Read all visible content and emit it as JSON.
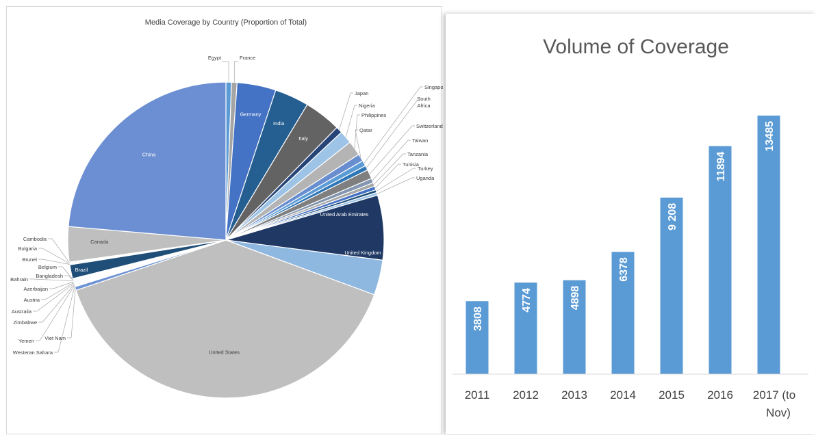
{
  "chart_data": [
    {
      "type": "pie",
      "title": "Media Coverage by Country (Proportion of Total)",
      "slices": [
        {
          "label": "Egypt",
          "value": 0.6,
          "color": "#5b9bd5"
        },
        {
          "label": "France",
          "value": 0.6,
          "color": "#a5a5a5"
        },
        {
          "label": "Germany",
          "value": 4.2,
          "color": "#4472c4"
        },
        {
          "label": "India",
          "value": 3.7,
          "color": "#255e91"
        },
        {
          "label": "Italy",
          "value": 4.0,
          "color": "#636363"
        },
        {
          "label": "Japan",
          "value": 0.7,
          "color": "#264478"
        },
        {
          "label": "Nigeria",
          "value": 1.4,
          "color": "#9dc3e6"
        },
        {
          "label": "Philippines",
          "value": 1.6,
          "color": "#b4b4b4"
        },
        {
          "label": "Qatar",
          "value": 0.8,
          "color": "#698ed0"
        },
        {
          "label": "Singapore",
          "value": 0.6,
          "color": "#5b9bd5"
        },
        {
          "label": "South Africa",
          "value": 0.5,
          "color": "#2e75b6"
        },
        {
          "label": "Switzerland",
          "value": 1.0,
          "color": "#7f7f7f"
        },
        {
          "label": "Taiwan",
          "value": 0.5,
          "color": "#8497b0"
        },
        {
          "label": "Tanzania",
          "value": 0.4,
          "color": "#a6a6a6"
        },
        {
          "label": "Tunisia",
          "value": 0.4,
          "color": "#4472c4"
        },
        {
          "label": "Turkey",
          "value": 0.3,
          "color": "#1f4e79"
        },
        {
          "label": "Uganda",
          "value": 0.3,
          "color": "#9dc3e6"
        },
        {
          "label": "United Arab Emirates",
          "value": 7.0,
          "color": "#203864"
        },
        {
          "label": "United Kingdom",
          "value": 3.8,
          "color": "#8fb8e0"
        },
        {
          "label": "United States",
          "value": 41.5,
          "color": "#bfbfbf"
        },
        {
          "label": "Viet Nam",
          "value": 0.4,
          "color": "#6d93d4"
        },
        {
          "label": "Westeran Sahara",
          "value": 0.1,
          "color": "#dce6f2"
        },
        {
          "label": "Yemen",
          "value": 0.1,
          "color": "#c9d9ee"
        },
        {
          "label": "Zimbabwe",
          "value": 0.1,
          "color": "#b4c7e7"
        },
        {
          "label": "Australia",
          "value": 0.1,
          "color": "#a9c4eb"
        },
        {
          "label": "Austria",
          "value": 0.1,
          "color": "#dae3f3"
        },
        {
          "label": "Azerbaijan",
          "value": 0.1,
          "color": "#8faadc"
        },
        {
          "label": "Bahrain",
          "value": 0.1,
          "color": "#c5d5ea"
        },
        {
          "label": "Bangladesh",
          "value": 0.1,
          "color": "#9dc3e6"
        },
        {
          "label": "Belgium",
          "value": 0.1,
          "color": "#d6dce5"
        },
        {
          "label": "Brazil",
          "value": 1.5,
          "color": "#1f4e79"
        },
        {
          "label": "Brunei",
          "value": 0.1,
          "color": "#d0d0d0"
        },
        {
          "label": "Bulgaria",
          "value": 0.1,
          "color": "#e7e6e6"
        },
        {
          "label": "Cambodia",
          "value": 0.1,
          "color": "#aab8d6"
        },
        {
          "label": "Canada",
          "value": 3.8,
          "color": "#bfbfbf"
        },
        {
          "label": "China",
          "value": 25.0,
          "color": "#6b8fd2"
        }
      ]
    },
    {
      "type": "bar",
      "title": "Volume of Coverage",
      "categories": [
        "2011",
        "2012",
        "2013",
        "2014",
        "2015",
        "2016",
        "2017 (to Nov)"
      ],
      "values": [
        3808,
        4774,
        4898,
        6378,
        9208,
        11894,
        13485
      ],
      "value_labels": [
        "3808",
        "4774",
        "4898",
        "6378",
        "9 208",
        "11894",
        "13485"
      ],
      "bar_color": "#5b9bd5",
      "grid": false
    }
  ]
}
